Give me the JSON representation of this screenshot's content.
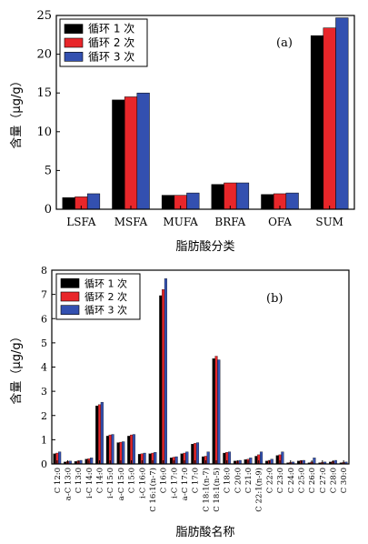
{
  "chart_data": [
    {
      "type": "bar",
      "panel_label": "(a)",
      "xlabel": "脂肪酸分类",
      "ylabel": "含量（μg/g）",
      "ylim": [
        0,
        25
      ],
      "yticks": [
        0,
        5,
        10,
        15,
        20,
        25
      ],
      "categories": [
        "LSFA",
        "MSFA",
        "MUFA",
        "BRFA",
        "OFA",
        "SUM"
      ],
      "legend_position": "top-left",
      "grid": false,
      "series": [
        {
          "name": "循环 1 次",
          "color": "#000000",
          "values": [
            1.5,
            14.1,
            1.8,
            3.2,
            1.9,
            22.4
          ]
        },
        {
          "name": "循环 2 次",
          "color": "#e8262a",
          "values": [
            1.6,
            14.5,
            1.8,
            3.4,
            2.0,
            23.4
          ]
        },
        {
          "name": "循环 3 次",
          "color": "#3350b0",
          "values": [
            2.0,
            15.0,
            2.1,
            3.4,
            2.1,
            24.7
          ]
        }
      ]
    },
    {
      "type": "bar",
      "panel_label": "(b)",
      "xlabel": "脂肪酸名称",
      "ylabel": "含量（μg/g）",
      "ylim": [
        0,
        8
      ],
      "yticks": [
        0,
        1,
        2,
        3,
        4,
        5,
        6,
        7,
        8
      ],
      "categories": [
        "C 12:0",
        "a-C 13:0",
        "C 13:0",
        "i-C 14:0",
        "C 14:0",
        "i-C 15:0",
        "a-C 15:0",
        "C 15:0",
        "i-C 16:0",
        "C 16:1(n-7)",
        "C 16:0",
        "i-C 17:0",
        "a-C 17:0",
        "C 17:0",
        "C 18:1(n-7)",
        "C 18:1(n-5)",
        "C 18:0",
        "C 20:0",
        "C 21:0",
        "C 22:1(n-9)",
        "C 22:0",
        "C 23:0",
        "C 24:0",
        "C 25:0",
        "C 26:0",
        "C 27:0",
        "C 28:0",
        "C 30:0"
      ],
      "legend_position": "top-left",
      "grid": false,
      "series": [
        {
          "name": "循环 1 次",
          "color": "#000000",
          "values": [
            0.42,
            0.08,
            0.1,
            0.2,
            2.4,
            1.15,
            0.88,
            1.15,
            0.4,
            0.42,
            6.95,
            0.25,
            0.42,
            0.82,
            0.3,
            4.35,
            0.45,
            0.12,
            0.18,
            0.32,
            0.12,
            0.35,
            0.05,
            0.12,
            0.05,
            0.05,
            0.08,
            0.05
          ]
        },
        {
          "name": "循环 2 次",
          "color": "#e8262a",
          "values": [
            0.45,
            0.1,
            0.12,
            0.22,
            2.45,
            1.2,
            0.9,
            1.2,
            0.42,
            0.45,
            7.2,
            0.28,
            0.45,
            0.85,
            0.32,
            4.45,
            0.48,
            0.12,
            0.2,
            0.38,
            0.15,
            0.38,
            0.06,
            0.14,
            0.08,
            0.06,
            0.1,
            0.06
          ]
        },
        {
          "name": "循环 3 次",
          "color": "#3350b0",
          "values": [
            0.5,
            0.12,
            0.15,
            0.25,
            2.55,
            1.22,
            0.92,
            1.22,
            0.45,
            0.48,
            7.65,
            0.3,
            0.5,
            0.88,
            0.5,
            4.3,
            0.5,
            0.15,
            0.25,
            0.5,
            0.2,
            0.5,
            0.08,
            0.15,
            0.25,
            0.08,
            0.15,
            0.08
          ]
        }
      ]
    }
  ]
}
